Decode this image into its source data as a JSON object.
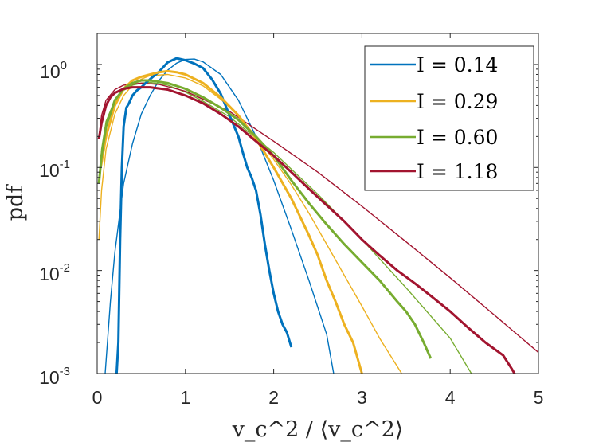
{
  "chart_data": {
    "type": "line",
    "title": "",
    "xlabel": "v_c^2 / ⟨v_c^2⟩",
    "ylabel": "pdf",
    "yscale": "log",
    "xlim": [
      0,
      5
    ],
    "ylim": [
      0.001,
      2
    ],
    "x_ticks": [
      "0",
      "1",
      "2",
      "3",
      "4",
      "5"
    ],
    "y_ticks": [
      {
        "base": "10",
        "exp": "0",
        "value": 1
      },
      {
        "base": "10",
        "exp": "-1",
        "value": 0.1
      },
      {
        "base": "10",
        "exp": "-2",
        "value": 0.01
      },
      {
        "base": "10",
        "exp": "-3",
        "value": 0.001
      }
    ],
    "legend_position": "top-right",
    "series": [
      {
        "name": "I = 0.14",
        "color": "#0072BD",
        "empirical": {
          "x": [
            0.22,
            0.24,
            0.26,
            0.28,
            0.3,
            0.33,
            0.36,
            0.4,
            0.45,
            0.5,
            0.55,
            0.6,
            0.7,
            0.8,
            0.9,
            1.0,
            1.1,
            1.2,
            1.3,
            1.4,
            1.5,
            1.6,
            1.65,
            1.7,
            1.75,
            1.8,
            1.85,
            1.9,
            1.95,
            2.0,
            2.05,
            2.1,
            2.15,
            2.2
          ],
          "y": [
            0.001,
            0.002,
            0.02,
            0.1,
            0.25,
            0.38,
            0.42,
            0.5,
            0.56,
            0.6,
            0.66,
            0.72,
            0.85,
            1.05,
            1.15,
            1.1,
            1.02,
            0.92,
            0.72,
            0.52,
            0.32,
            0.2,
            0.14,
            0.1,
            0.08,
            0.06,
            0.035,
            0.018,
            0.01,
            0.006,
            0.004,
            0.003,
            0.0025,
            0.0018
          ]
        },
        "fit": {
          "x": [
            0.09,
            0.15,
            0.2,
            0.3,
            0.4,
            0.5,
            0.6,
            0.7,
            0.8,
            0.9,
            1.0,
            1.1,
            1.2,
            1.4,
            1.6,
            1.8,
            2.0,
            2.2,
            2.4,
            2.6,
            2.68
          ],
          "y": [
            0.001,
            0.005,
            0.015,
            0.07,
            0.17,
            0.33,
            0.5,
            0.7,
            0.88,
            1.03,
            1.12,
            1.13,
            1.06,
            0.8,
            0.45,
            0.2,
            0.075,
            0.025,
            0.008,
            0.0024,
            0.001
          ]
        }
      },
      {
        "name": "I = 0.29",
        "color": "#EDB120",
        "empirical": {
          "x": [
            0.04,
            0.1,
            0.2,
            0.3,
            0.4,
            0.5,
            0.6,
            0.7,
            0.8,
            0.9,
            1.0,
            1.2,
            1.4,
            1.6,
            1.8,
            2.0,
            2.2,
            2.4,
            2.5,
            2.6,
            2.7,
            2.8,
            2.9,
            3.0
          ],
          "y": [
            0.1,
            0.2,
            0.4,
            0.58,
            0.7,
            0.76,
            0.8,
            0.84,
            0.86,
            0.84,
            0.8,
            0.66,
            0.48,
            0.32,
            0.19,
            0.1,
            0.05,
            0.022,
            0.014,
            0.008,
            0.005,
            0.003,
            0.002,
            0.001
          ]
        },
        "fit": {
          "x": [
            0.02,
            0.05,
            0.1,
            0.2,
            0.3,
            0.4,
            0.5,
            0.6,
            0.8,
            1.0,
            1.2,
            1.4,
            1.6,
            1.8,
            2.0,
            2.2,
            2.4,
            2.6,
            2.8,
            3.0,
            3.2,
            3.45
          ],
          "y": [
            0.02,
            0.06,
            0.15,
            0.33,
            0.5,
            0.63,
            0.72,
            0.78,
            0.8,
            0.74,
            0.62,
            0.46,
            0.32,
            0.2,
            0.12,
            0.068,
            0.036,
            0.018,
            0.009,
            0.0045,
            0.0022,
            0.001
          ]
        }
      },
      {
        "name": "I = 0.60",
        "color": "#77AC30",
        "empirical": {
          "x": [
            0.02,
            0.05,
            0.1,
            0.2,
            0.3,
            0.4,
            0.5,
            0.6,
            0.8,
            1.0,
            1.2,
            1.4,
            1.6,
            1.8,
            2.0,
            2.2,
            2.4,
            2.6,
            2.8,
            3.0,
            3.2,
            3.4,
            3.5,
            3.6,
            3.7,
            3.78
          ],
          "y": [
            0.07,
            0.13,
            0.25,
            0.45,
            0.58,
            0.66,
            0.7,
            0.7,
            0.66,
            0.58,
            0.48,
            0.38,
            0.29,
            0.2,
            0.13,
            0.075,
            0.045,
            0.028,
            0.018,
            0.012,
            0.008,
            0.005,
            0.004,
            0.003,
            0.002,
            0.0014
          ]
        },
        "fit": {
          "x": [
            0.02,
            0.05,
            0.1,
            0.2,
            0.3,
            0.4,
            0.5,
            0.6,
            0.8,
            1.0,
            1.2,
            1.5,
            2.0,
            2.5,
            3.0,
            3.5,
            4.0,
            4.24
          ],
          "y": [
            0.07,
            0.15,
            0.28,
            0.45,
            0.56,
            0.63,
            0.66,
            0.67,
            0.63,
            0.54,
            0.44,
            0.31,
            0.14,
            0.055,
            0.02,
            0.0068,
            0.0022,
            0.001
          ]
        }
      },
      {
        "name": "I = 1.18",
        "color": "#A2142F",
        "empirical": {
          "x": [
            0.02,
            0.05,
            0.1,
            0.15,
            0.2,
            0.3,
            0.4,
            0.6,
            0.8,
            1.0,
            1.2,
            1.4,
            1.6,
            1.8,
            2.0,
            2.2,
            2.4,
            2.6,
            2.8,
            3.0,
            3.2,
            3.4,
            3.6,
            3.8,
            4.0,
            4.2,
            4.4,
            4.6,
            4.7,
            4.76
          ],
          "y": [
            0.19,
            0.27,
            0.4,
            0.48,
            0.53,
            0.58,
            0.6,
            0.6,
            0.57,
            0.5,
            0.42,
            0.33,
            0.25,
            0.18,
            0.13,
            0.09,
            0.062,
            0.043,
            0.03,
            0.02,
            0.014,
            0.01,
            0.0075,
            0.0055,
            0.004,
            0.0028,
            0.002,
            0.0015,
            0.0011,
            0.0009
          ]
        },
        "fit": {
          "x": [
            0.02,
            0.05,
            0.1,
            0.2,
            0.3,
            0.5,
            0.7,
            1.0,
            1.5,
            2.0,
            2.5,
            3.0,
            3.5,
            4.0,
            4.5,
            5.0
          ],
          "y": [
            0.2,
            0.32,
            0.45,
            0.57,
            0.63,
            0.66,
            0.64,
            0.55,
            0.35,
            0.18,
            0.09,
            0.042,
            0.019,
            0.0085,
            0.0037,
            0.0016
          ]
        }
      }
    ]
  }
}
